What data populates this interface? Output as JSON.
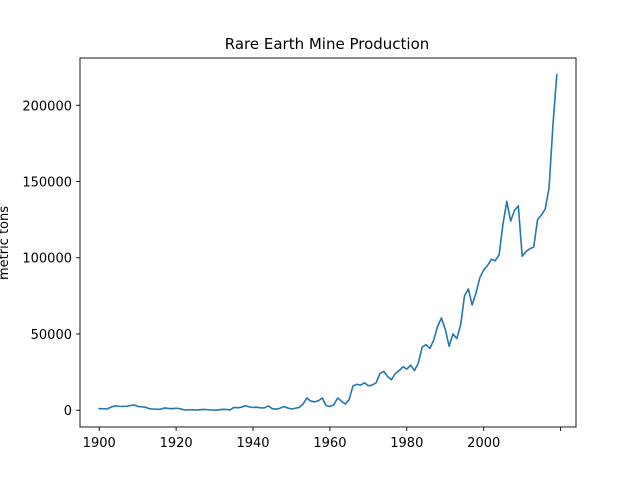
{
  "chart_data": {
    "type": "line",
    "title": "Rare Earth Mine Production",
    "xlabel": "",
    "ylabel": "metric tons",
    "xlim": [
      1895,
      2024
    ],
    "ylim": [
      -11000,
      231000
    ],
    "x_ticks": [
      1900,
      1920,
      1940,
      1960,
      1980,
      2000,
      2020
    ],
    "x_tick_labels": [
      "1900",
      "1920",
      "1940",
      "1960",
      "1980",
      "2000",
      ""
    ],
    "y_ticks": [
      0,
      50000,
      100000,
      150000,
      200000
    ],
    "y_tick_labels": [
      "0",
      "50000",
      "100000",
      "150000",
      "200000"
    ],
    "grid": false,
    "legend": "none",
    "line_color": "#1f77b4",
    "series": [
      {
        "x": [
          1900,
          1901,
          1902,
          1903,
          1904,
          1905,
          1906,
          1907,
          1908,
          1909,
          1910,
          1911,
          1912,
          1913,
          1914,
          1915,
          1916,
          1917,
          1918,
          1919,
          1920,
          1921,
          1922,
          1923,
          1924,
          1925,
          1926,
          1927,
          1928,
          1929,
          1930,
          1931,
          1932,
          1933,
          1934,
          1935,
          1936,
          1937,
          1938,
          1939,
          1940,
          1941,
          1942,
          1943,
          1944,
          1945,
          1946,
          1947,
          1948,
          1949,
          1950,
          1951,
          1952,
          1953,
          1954,
          1955,
          1956,
          1957,
          1958,
          1959,
          1960,
          1961,
          1962,
          1963,
          1964,
          1965,
          1966,
          1967,
          1968,
          1969,
          1970,
          1971,
          1972,
          1973,
          1974,
          1975,
          1976,
          1977,
          1978,
          1979,
          1980,
          1981,
          1982,
          1983,
          1984,
          1985,
          1986,
          1987,
          1988,
          1989,
          1990,
          1991,
          1992,
          1993,
          1994,
          1995,
          1996,
          1997,
          1998,
          1999,
          2000,
          2001,
          2002,
          2003,
          2004,
          2005,
          2006,
          2007,
          2008,
          2009,
          2010,
          2011,
          2012,
          2013,
          2014,
          2015,
          2016,
          2017,
          2018,
          2019
        ],
        "values": [
          1000,
          1000,
          800,
          2000,
          2800,
          2600,
          2500,
          2600,
          3000,
          3500,
          2500,
          2200,
          2000,
          1000,
          800,
          600,
          700,
          1500,
          1200,
          1000,
          1300,
          1000,
          300,
          200,
          400,
          100,
          300,
          500,
          400,
          200,
          100,
          200,
          600,
          500,
          200,
          1800,
          1600,
          2000,
          3000,
          2200,
          1800,
          2000,
          1500,
          1600,
          2800,
          1000,
          700,
          1300,
          2400,
          1500,
          800,
          1300,
          1800,
          4000,
          8000,
          6000,
          5500,
          6200,
          8000,
          3000,
          2500,
          3500,
          8000,
          6000,
          4000,
          7000,
          16000,
          17000,
          16500,
          18000,
          16000,
          16500,
          18000,
          24000,
          25500,
          22000,
          20000,
          24000,
          26000,
          28500,
          27000,
          29500,
          26000,
          31000,
          41500,
          43000,
          40500,
          46000,
          55000,
          60500,
          53000,
          42000,
          50000,
          47000,
          56000,
          75000,
          79500,
          69000,
          77000,
          87000,
          92000,
          95000,
          99000,
          98000,
          102000,
          122000,
          137000,
          124000,
          131000,
          134000,
          101000,
          104000,
          106000,
          107000,
          125000,
          128000,
          132000,
          146000,
          187000,
          220000
        ]
      }
    ]
  }
}
